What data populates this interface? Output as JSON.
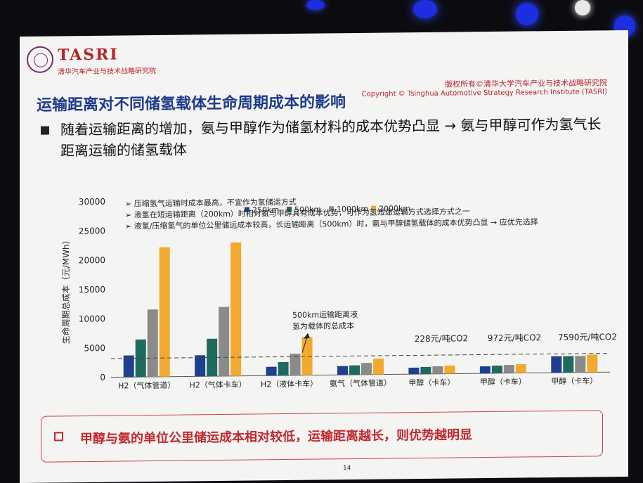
{
  "header": {
    "brand": "TASRI",
    "brand_sub": "清华汽车产业与技术战略研究院",
    "copyright_cn": "版权所有©清华大学汽车产业与技术战略研究院",
    "copyright_en": "Copyright © Tsinghua Automotive Strategy Research Institute (TASRI)"
  },
  "slide_title": "运输距离对不同储氢载体生命周期成本的影响",
  "bullet": "随着运输距离的增加，氨与甲醇作为储氢材料的成本优势凸显 → 氨与甲醇可作为氢气长距离运输的储氢载体",
  "notes": [
    "➢ 压缩氢气运输时成本最高，不宜作为氢储运方式",
    "➢ 液氢在短运输距离（200km）时相对氨与甲醇具有成本优势，可作为氢短途运输方式选择方式之一",
    "➢ 液氢/压缩氢气的单位公里储运成本较高，长运输距离（500km）时，氨与甲醇储氢载体的成本优势凸显 → 应优先选择"
  ],
  "annotations": {
    "arrow_note_line1": "500km运输距离液",
    "arrow_note_line2": "氢为载体的总成本",
    "co2_1": "228元/吨CO2",
    "co2_2": "972元/吨CO2",
    "co2_3": "7590元/吨CO2"
  },
  "conclusion": "甲醇与氨的单位公里储运成本相对较低，运输距离越长，则优势越明显",
  "page_number": "14",
  "colors": {
    "s250": "#1f3f8f",
    "s500": "#1e6a5e",
    "s1000": "#8a8a8a",
    "s2000": "#f2a930",
    "title": "#1f3a8c",
    "accent": "#c0282d"
  },
  "chart_data": {
    "type": "bar",
    "ylabel": "生命周期总成本（元/MWh）",
    "ylim": [
      0,
      30000
    ],
    "yticks": [
      0,
      5000,
      10000,
      15000,
      20000,
      25000,
      30000
    ],
    "legend_position": "top",
    "categories": [
      "H2（气体管道）",
      "H2（气体卡车）",
      "H2（液体卡车）",
      "氨气（气体管道）",
      "甲醇（卡车）",
      "甲醇（卡车）",
      "甲醇（卡车）"
    ],
    "series": [
      {
        "name": "250km",
        "values": [
          3700,
          3600,
          1500,
          1500,
          1100,
          1200,
          2800
        ]
      },
      {
        "name": "500km",
        "values": [
          6400,
          6400,
          2300,
          1600,
          1200,
          1300,
          2800
        ]
      },
      {
        "name": "1000km",
        "values": [
          11500,
          11800,
          3700,
          2000,
          1300,
          1400,
          2800
        ]
      },
      {
        "name": "2000km",
        "values": [
          22100,
          22800,
          6500,
          2700,
          1400,
          1500,
          3000
        ]
      }
    ],
    "reference_line": 3200
  }
}
